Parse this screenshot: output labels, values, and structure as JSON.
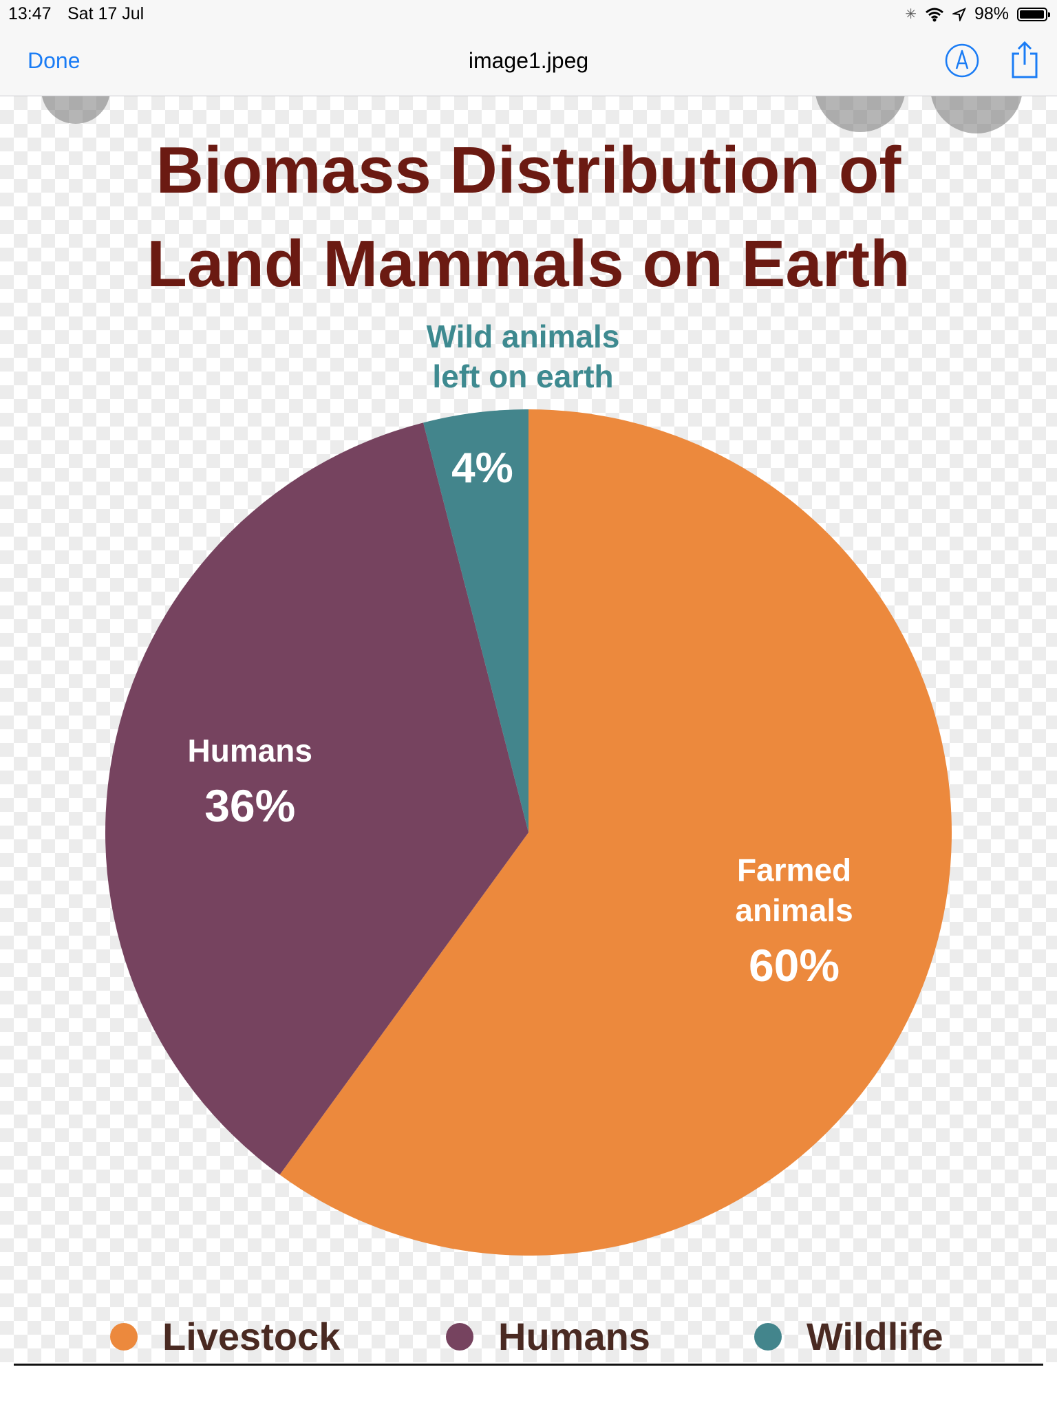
{
  "status_bar": {
    "time": "13:47",
    "date": "Sat 17 Jul",
    "battery_text": "98%",
    "battery_level_percent": 98
  },
  "nav": {
    "done_label": "Done",
    "title": "image1.jpeg",
    "markup_icon": "markup-pen-icon",
    "share_icon": "share-icon",
    "accent_color": "#1a7cf5"
  },
  "chart_data": {
    "type": "pie",
    "title": "Biomass Distribution of Land Mammals on Earth",
    "title_lines": [
      "Biomass Distribution of",
      "Land Mammals on Earth"
    ],
    "slices": [
      {
        "label_lines": [
          "Farmed",
          "animals"
        ],
        "value": 60,
        "value_label": "60%",
        "color": "#ec893d"
      },
      {
        "label_lines": [
          "Humans"
        ],
        "value": 36,
        "value_label": "36%",
        "color": "#76435f"
      },
      {
        "label_lines": [
          "Wild animals",
          "left on earth"
        ],
        "value": 4,
        "value_label": "4%",
        "color": "#43858c"
      }
    ],
    "legend": {
      "placement": "bottom",
      "entries": [
        {
          "label": "Livestock",
          "color": "#ec893d"
        },
        {
          "label": "Humans",
          "color": "#76435f"
        },
        {
          "label": "Wildlife",
          "color": "#43858c"
        }
      ]
    }
  }
}
